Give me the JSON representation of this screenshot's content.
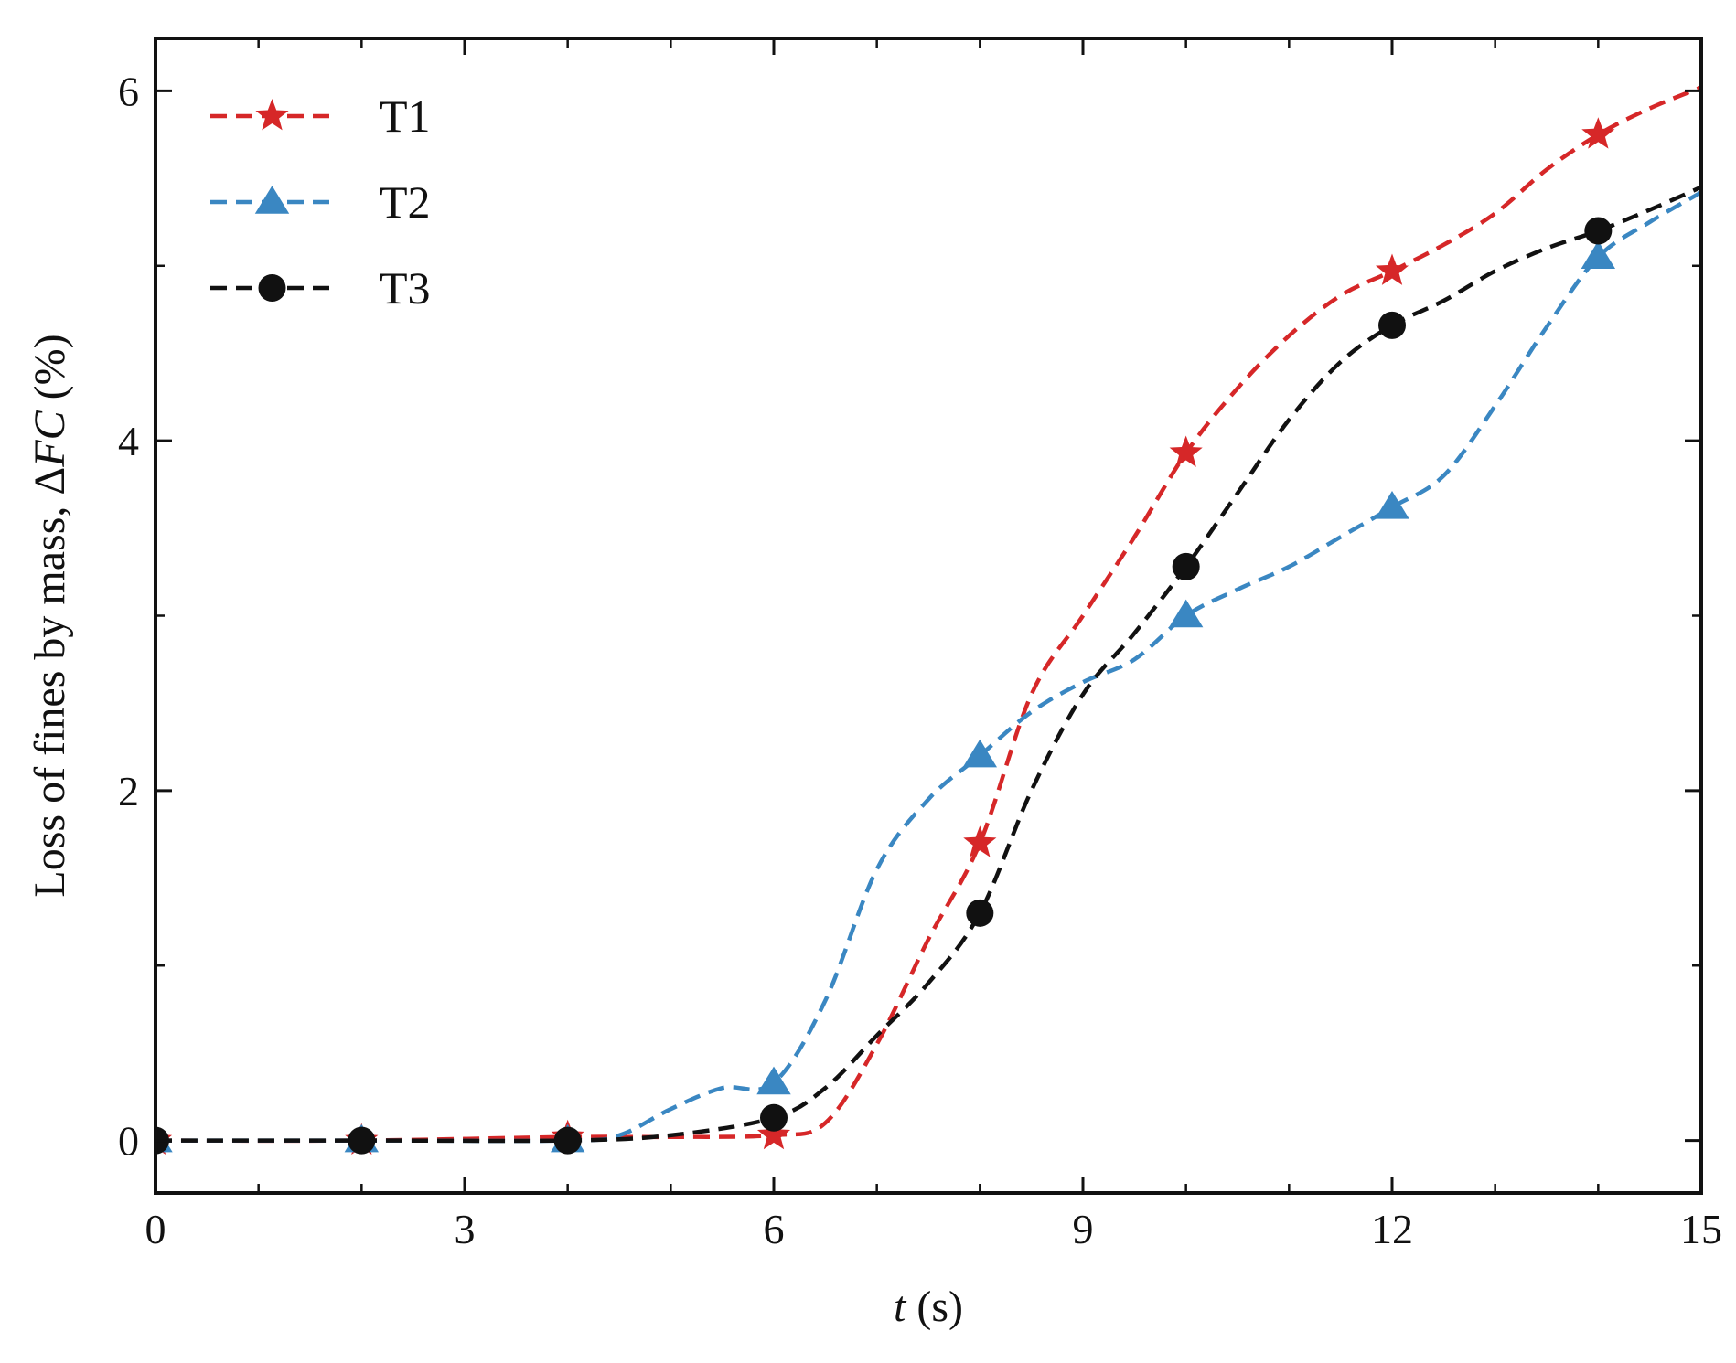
{
  "chart_data": {
    "type": "line",
    "title": "",
    "xlabel": {
      "var": "t",
      "unit": " (s)"
    },
    "ylabel": {
      "text": "Loss of fines by mass, ",
      "delta": "Δ",
      "var": "FC",
      "unit": " (%)"
    },
    "xlim": [
      0,
      15
    ],
    "ylim": [
      -0.3,
      6.3
    ],
    "xticks": [
      0,
      3,
      6,
      9,
      12,
      15
    ],
    "xticks_minor": [
      1,
      2,
      4,
      5,
      7,
      8,
      10,
      11,
      13,
      14
    ],
    "yticks": [
      0,
      2,
      4,
      6
    ],
    "yticks_minor": [
      1,
      3,
      5
    ],
    "grid": false,
    "legend_position": "top-left",
    "series": [
      {
        "name": "T1",
        "color": "#d62728",
        "marker": "star",
        "x": [
          0,
          2,
          4,
          6,
          8,
          10,
          12,
          14
        ],
        "y": [
          0,
          0,
          0.02,
          0.03,
          1.7,
          3.93,
          4.97,
          5.75
        ],
        "curve_x": [
          0,
          2,
          4,
          5,
          6,
          6.5,
          7,
          7.5,
          8,
          8.5,
          9,
          9.5,
          10,
          10.5,
          11,
          11.5,
          12,
          12.5,
          13,
          13.5,
          14,
          14.5,
          15
        ],
        "curve_y": [
          0,
          0,
          0.02,
          0.02,
          0.03,
          0.1,
          0.55,
          1.15,
          1.7,
          2.55,
          3.0,
          3.45,
          3.93,
          4.3,
          4.6,
          4.83,
          4.97,
          5.12,
          5.3,
          5.55,
          5.75,
          5.9,
          6.02
        ]
      },
      {
        "name": "T2",
        "color": "#3a87c2",
        "marker": "triangle",
        "x": [
          0,
          2,
          4,
          6,
          8,
          10,
          12,
          14
        ],
        "y": [
          0,
          0,
          0,
          0.33,
          2.2,
          3.0,
          3.62,
          5.05
        ],
        "curve_x": [
          0,
          2,
          4,
          4.5,
          5,
          5.5,
          6,
          6.5,
          7,
          7.5,
          8,
          8.5,
          9,
          9.5,
          10,
          10.5,
          11,
          11.5,
          12,
          12.5,
          13,
          13.5,
          14,
          14.5,
          15
        ],
        "curve_y": [
          0,
          0,
          0,
          0.03,
          0.18,
          0.3,
          0.33,
          0.8,
          1.55,
          1.95,
          2.2,
          2.45,
          2.62,
          2.75,
          3.0,
          3.15,
          3.28,
          3.45,
          3.62,
          3.8,
          4.2,
          4.65,
          5.05,
          5.25,
          5.42
        ]
      },
      {
        "name": "T3",
        "color": "#111111",
        "marker": "circle",
        "x": [
          0,
          2,
          4,
          6,
          8,
          10,
          12,
          14
        ],
        "y": [
          0,
          0,
          0,
          0.13,
          1.3,
          3.28,
          4.66,
          5.2
        ],
        "curve_x": [
          0,
          2,
          4,
          5,
          6,
          6.5,
          7,
          7.5,
          8,
          8.5,
          9,
          9.5,
          10,
          10.5,
          11,
          11.5,
          12,
          12.5,
          13,
          13.5,
          14,
          14.5,
          15
        ],
        "curve_y": [
          0,
          0,
          0,
          0.03,
          0.13,
          0.3,
          0.6,
          0.9,
          1.3,
          2.0,
          2.55,
          2.9,
          3.28,
          3.7,
          4.12,
          4.45,
          4.66,
          4.8,
          4.97,
          5.1,
          5.2,
          5.32,
          5.45
        ]
      }
    ]
  }
}
